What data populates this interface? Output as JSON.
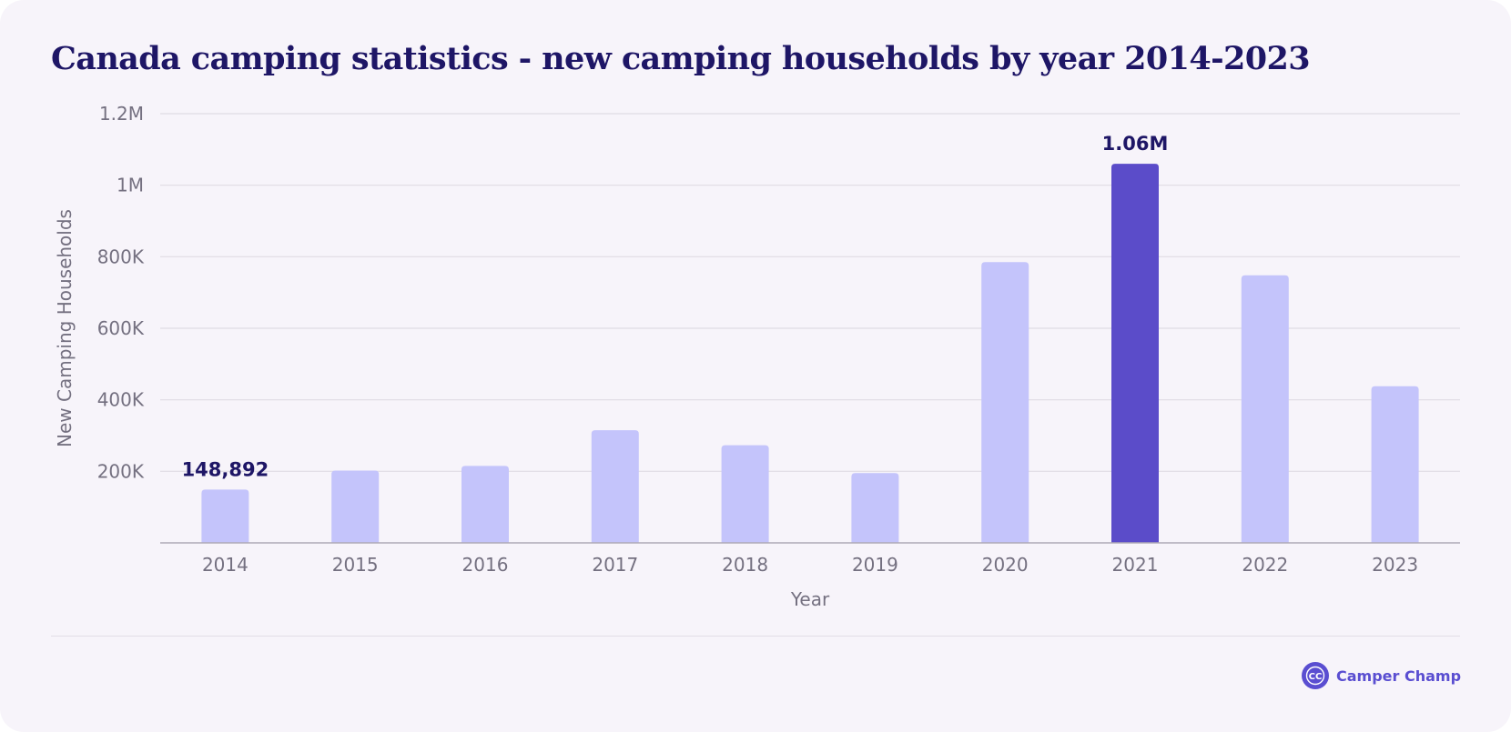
{
  "brand": {
    "name": "Camper Champ",
    "logo_icon": "camper-champ-logo-icon",
    "logo_text": "CC",
    "color": "#5a4ed1"
  },
  "colors": {
    "title": "#1e1666",
    "bar": "#c4c4fb",
    "bar_highlight": "#5b4cc9",
    "background": "#f7f4fa"
  },
  "chart_data": {
    "type": "bar",
    "title": "Canada camping statistics - new camping households by year 2014-2023",
    "xlabel": "Year",
    "ylabel": "New Camping Households",
    "ylim": [
      0,
      1200000
    ],
    "yticks": [
      200000,
      400000,
      600000,
      800000,
      1000000,
      1200000
    ],
    "ytick_labels": [
      "200K",
      "400K",
      "600K",
      "800K",
      "1M",
      "1.2M"
    ],
    "grid": true,
    "legend": "none",
    "categories": [
      "2014",
      "2015",
      "2016",
      "2017",
      "2018",
      "2019",
      "2020",
      "2021",
      "2022",
      "2023"
    ],
    "values": [
      148892,
      202000,
      215000,
      315000,
      273000,
      195000,
      785000,
      1060000,
      748000,
      438000
    ],
    "highlight_index": 7,
    "annotations": [
      {
        "index": 0,
        "text": "148,892"
      },
      {
        "index": 7,
        "text": "1.06M"
      }
    ]
  }
}
